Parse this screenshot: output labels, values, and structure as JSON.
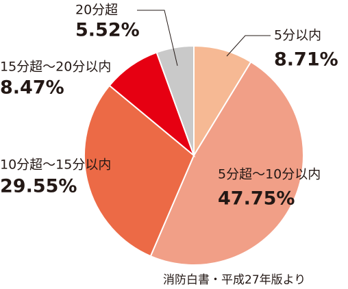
{
  "chart_data": {
    "type": "pie",
    "categories": [
      "5分以内",
      "5分超～10分以内",
      "10分超～15分以内",
      "15分超～20分以内",
      "20分超"
    ],
    "values": [
      8.71,
      47.75,
      29.55,
      8.47,
      5.52
    ],
    "value_labels": [
      "8.71%",
      "47.75%",
      "29.55%",
      "8.47%",
      "5.52%"
    ],
    "colors": [
      "#f6b994",
      "#f19f87",
      "#ec6a46",
      "#e60012",
      "#c9c9c9"
    ],
    "source": "消防白書・平成27年版より"
  }
}
